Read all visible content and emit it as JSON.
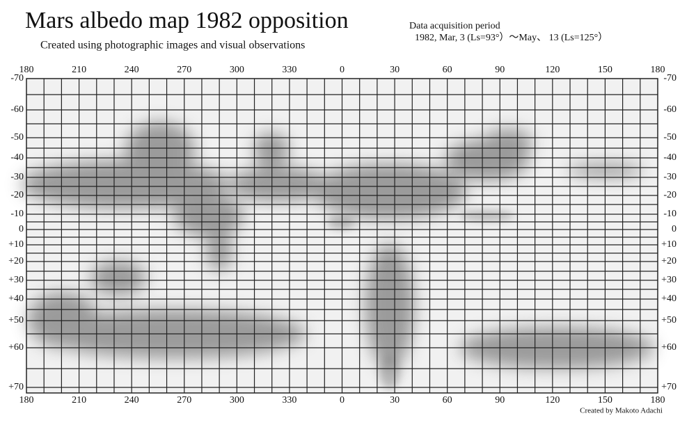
{
  "header": {
    "title": "Mars albedo map 1982   opposition",
    "subtitle": "Created using photographic images and visual observations",
    "period_title": "Data acquisition period",
    "period": "1982, Mar, 3 (Ls=93°）～May、 13 (Ls=125°）"
  },
  "map": {
    "longitudes": [
      "180",
      "210",
      "240",
      "270",
      "300",
      "330",
      "0",
      "30",
      "60",
      "90",
      "120",
      "150",
      "180"
    ],
    "latitudes": [
      "-70",
      "-60",
      "-50",
      "-40",
      "-30",
      "-20",
      "-10",
      "0",
      "+10",
      "+20",
      "+30",
      "+40",
      "+50",
      "+60",
      "+70"
    ]
  },
  "credit": "Created by Makoto Adachi"
}
